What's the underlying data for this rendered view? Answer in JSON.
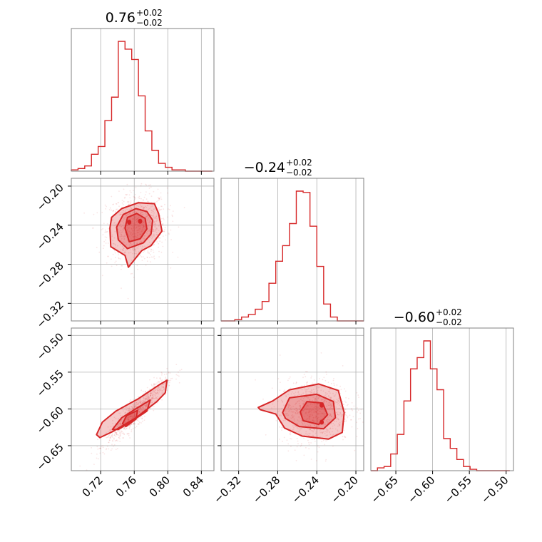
{
  "chart_data": {
    "type": "corner",
    "color": "#d62728",
    "grid": true,
    "parameters": [
      {
        "median": "0.76",
        "upper": "+0.02",
        "lower": "−0.02",
        "range": [
          0.685,
          0.855
        ],
        "ticks": [
          0.72,
          0.76,
          0.8,
          0.84
        ],
        "tick_labels": [
          "0.72",
          "0.76",
          "0.80",
          "0.84"
        ]
      },
      {
        "median": "−0.24",
        "upper": "+0.02",
        "lower": "−0.02",
        "range": [
          -0.338,
          -0.192
        ],
        "ticks": [
          -0.32,
          -0.28,
          -0.24,
          -0.2
        ],
        "tick_labels": [
          "−0.32",
          "−0.28",
          "−0.24",
          "−0.20"
        ]
      },
      {
        "median": "−0.60",
        "upper": "+0.02",
        "lower": "−0.02",
        "range": [
          -0.684,
          -0.49
        ],
        "ticks": [
          -0.65,
          -0.6,
          -0.55,
          -0.5
        ],
        "tick_labels": [
          "−0.65",
          "−0.60",
          "−0.55",
          "−0.50"
        ]
      }
    ],
    "histograms": [
      {
        "parameter": 0,
        "bin_edges": [
          0.685,
          0.693,
          0.701,
          0.709,
          0.717,
          0.725,
          0.733,
          0.741,
          0.749,
          0.757,
          0.765,
          0.773,
          0.781,
          0.789,
          0.797,
          0.805,
          0.813,
          0.821,
          0.829,
          0.837,
          0.845,
          0.853
        ],
        "counts": [
          0.01,
          0.02,
          0.04,
          0.13,
          0.19,
          0.39,
          0.57,
          1.0,
          0.94,
          0.86,
          0.58,
          0.31,
          0.16,
          0.06,
          0.03,
          0.01,
          0.01,
          0.0,
          0.0,
          0.0,
          0.0
        ]
      },
      {
        "parameter": 1,
        "bin_edges": [
          -0.338,
          -0.331,
          -0.324,
          -0.317,
          -0.31,
          -0.303,
          -0.296,
          -0.289,
          -0.282,
          -0.275,
          -0.268,
          -0.261,
          -0.254,
          -0.247,
          -0.24,
          -0.233,
          -0.226,
          -0.219,
          -0.212,
          -0.205,
          -0.198,
          -0.192
        ],
        "counts": [
          0.0,
          0.0,
          0.01,
          0.03,
          0.05,
          0.09,
          0.15,
          0.29,
          0.46,
          0.58,
          0.75,
          1.0,
          0.99,
          0.73,
          0.42,
          0.13,
          0.03,
          0.0,
          0.0,
          0.0,
          0.0
        ]
      },
      {
        "parameter": 2,
        "bin_edges": [
          -0.684,
          -0.675,
          -0.666,
          -0.657,
          -0.648,
          -0.639,
          -0.63,
          -0.621,
          -0.612,
          -0.603,
          -0.594,
          -0.585,
          -0.576,
          -0.567,
          -0.558,
          -0.549,
          -0.54,
          -0.531,
          -0.522,
          -0.513,
          -0.504,
          -0.495
        ],
        "counts": [
          0.0,
          0.02,
          0.03,
          0.12,
          0.26,
          0.5,
          0.73,
          0.81,
          0.93,
          0.73,
          0.58,
          0.23,
          0.16,
          0.08,
          0.03,
          0.01,
          0.0,
          0.0,
          0.0,
          0.0,
          0.0
        ]
      }
    ],
    "contours_2d": [
      {
        "x_param": 0,
        "y_param": 1,
        "outer": [
          [
            0.731,
            -0.243
          ],
          [
            0.733,
            -0.232
          ],
          [
            0.745,
            -0.223
          ],
          [
            0.765,
            -0.217
          ],
          [
            0.784,
            -0.218
          ],
          [
            0.789,
            -0.228
          ],
          [
            0.793,
            -0.246
          ],
          [
            0.78,
            -0.261
          ],
          [
            0.769,
            -0.266
          ],
          [
            0.753,
            -0.283
          ],
          [
            0.749,
            -0.271
          ],
          [
            0.732,
            -0.262
          ]
        ],
        "middle": [
          [
            0.739,
            -0.242
          ],
          [
            0.747,
            -0.229
          ],
          [
            0.762,
            -0.223
          ],
          [
            0.775,
            -0.226
          ],
          [
            0.782,
            -0.235
          ],
          [
            0.78,
            -0.249
          ],
          [
            0.771,
            -0.258
          ],
          [
            0.752,
            -0.264
          ],
          [
            0.741,
            -0.255
          ]
        ],
        "inner": [
          [
            0.749,
            -0.243
          ],
          [
            0.752,
            -0.232
          ],
          [
            0.763,
            -0.228
          ],
          [
            0.773,
            -0.233
          ],
          [
            0.775,
            -0.244
          ],
          [
            0.767,
            -0.254
          ],
          [
            0.754,
            -0.257
          ]
        ],
        "peaks": [
          [
            0.754,
            -0.237
          ],
          [
            0.767,
            -0.236
          ]
        ]
      },
      {
        "x_param": 0,
        "y_param": 2,
        "outer": [
          [
            0.715,
            -0.635
          ],
          [
            0.722,
            -0.618
          ],
          [
            0.738,
            -0.603
          ],
          [
            0.765,
            -0.586
          ],
          [
            0.79,
            -0.567
          ],
          [
            0.799,
            -0.561
          ],
          [
            0.797,
            -0.578
          ],
          [
            0.787,
            -0.59
          ],
          [
            0.762,
            -0.612
          ],
          [
            0.734,
            -0.631
          ],
          [
            0.719,
            -0.639
          ]
        ],
        "middle": [
          [
            0.734,
            -0.628
          ],
          [
            0.745,
            -0.612
          ],
          [
            0.763,
            -0.599
          ],
          [
            0.779,
            -0.588
          ],
          [
            0.775,
            -0.603
          ],
          [
            0.758,
            -0.616
          ],
          [
            0.741,
            -0.628
          ]
        ],
        "inner": [
          [
            0.746,
            -0.62
          ],
          [
            0.751,
            -0.609
          ],
          [
            0.764,
            -0.602
          ],
          [
            0.762,
            -0.614
          ],
          [
            0.75,
            -0.624
          ]
        ],
        "peaks": []
      },
      {
        "x_param": 1,
        "y_param": 2,
        "outer": [
          [
            -0.3,
            -0.598
          ],
          [
            -0.285,
            -0.589
          ],
          [
            -0.268,
            -0.574
          ],
          [
            -0.238,
            -0.566
          ],
          [
            -0.218,
            -0.575
          ],
          [
            -0.212,
            -0.605
          ],
          [
            -0.214,
            -0.632
          ],
          [
            -0.228,
            -0.641
          ],
          [
            -0.255,
            -0.637
          ],
          [
            -0.273,
            -0.626
          ],
          [
            -0.282,
            -0.607
          ],
          [
            -0.298,
            -0.601
          ]
        ],
        "middle": [
          [
            -0.275,
            -0.605
          ],
          [
            -0.268,
            -0.585
          ],
          [
            -0.24,
            -0.58
          ],
          [
            -0.223,
            -0.59
          ],
          [
            -0.221,
            -0.612
          ],
          [
            -0.233,
            -0.627
          ],
          [
            -0.258,
            -0.624
          ],
          [
            -0.272,
            -0.613
          ]
        ],
        "inner": [
          [
            -0.257,
            -0.604
          ],
          [
            -0.25,
            -0.59
          ],
          [
            -0.234,
            -0.592
          ],
          [
            -0.229,
            -0.608
          ],
          [
            -0.238,
            -0.621
          ],
          [
            -0.254,
            -0.616
          ]
        ],
        "peaks": [
          [
            -0.235,
            -0.595
          ],
          [
            -0.235,
            -0.618
          ]
        ]
      }
    ]
  }
}
